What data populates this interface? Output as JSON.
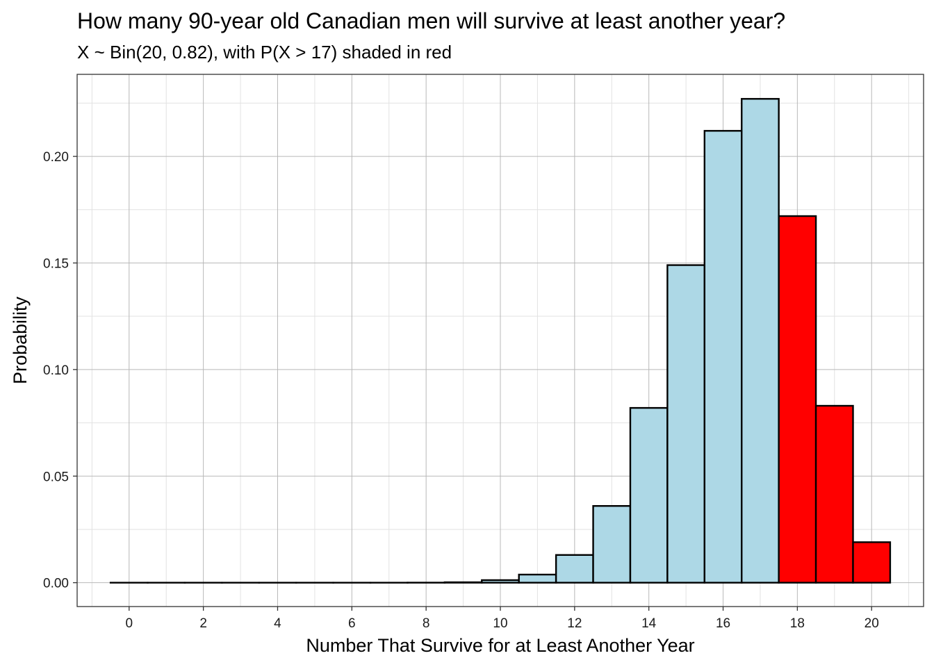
{
  "chart_data": {
    "type": "bar",
    "title": "How many 90-year old Canadian men will survive at least another year?",
    "subtitle": "X ~ Bin(20, 0.82), with P(X > 17) shaded in red",
    "xlabel": "Number That Survive for at Least Another Year",
    "ylabel": "Probability",
    "x": [
      0,
      1,
      2,
      3,
      4,
      5,
      6,
      7,
      8,
      9,
      10,
      11,
      12,
      13,
      14,
      15,
      16,
      17,
      18,
      19,
      20
    ],
    "values": [
      0.0,
      0.0,
      0.0,
      0.0,
      0.0,
      0.0,
      0.0,
      0.0,
      3e-05,
      0.0002,
      0.0012,
      0.0038,
      0.013,
      0.036,
      0.082,
      0.149,
      0.212,
      0.227,
      0.172,
      0.083,
      0.019
    ],
    "shaded_above": 17,
    "xlim": [
      -1.4,
      21.4
    ],
    "ylim": [
      -0.0112,
      0.2385
    ],
    "x_ticks": [
      0,
      2,
      4,
      6,
      8,
      10,
      12,
      14,
      16,
      18,
      20
    ],
    "x_tick_labels": [
      "0",
      "2",
      "4",
      "6",
      "8",
      "10",
      "12",
      "14",
      "16",
      "18",
      "20"
    ],
    "y_ticks": [
      0,
      0.05,
      0.1,
      0.15,
      0.2
    ],
    "y_tick_labels": [
      "0.00",
      "0.05",
      "0.10",
      "0.15",
      "0.20"
    ],
    "grid": true,
    "colors": {
      "fill_default": "#ADD8E6",
      "fill_shaded": "#FF0000",
      "outline": "#000000",
      "grid_major": "#b8b8b8",
      "grid_minor": "#e2e2e2",
      "panel_border": "#333333"
    }
  }
}
